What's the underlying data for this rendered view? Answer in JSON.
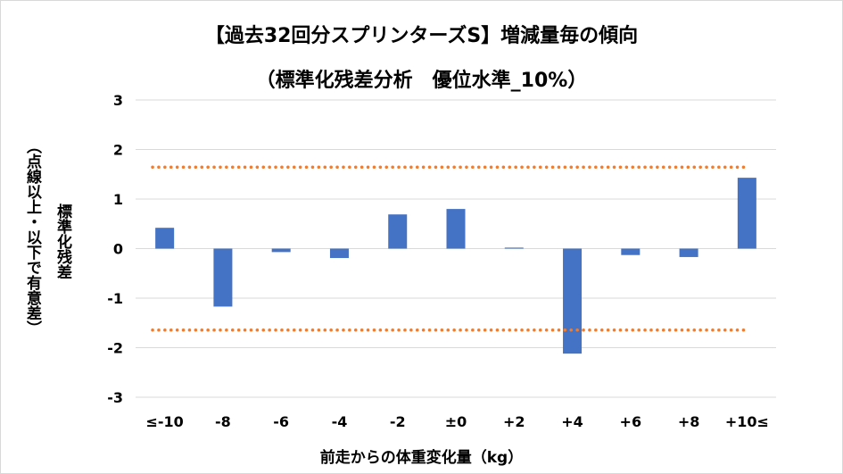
{
  "chart_data": {
    "type": "bar",
    "title": "【過去32回分スプリンターズS】増減量毎の傾向",
    "subtitle": "（標準化残差分析　優位水準_10%）",
    "ylabel": "標準化残差",
    "ylabel_note": "（点線以上・以下で有意差）",
    "xlabel": "前走からの体重変化量（kg）",
    "categories": [
      "≤-10",
      "-8",
      "-6",
      "-4",
      "-2",
      "±0",
      "+2",
      "+4",
      "+6",
      "+8",
      "+10≤"
    ],
    "values": [
      0.42,
      -1.17,
      -0.07,
      -0.19,
      0.69,
      0.8,
      0.02,
      -2.12,
      -0.13,
      -0.17,
      1.43
    ],
    "ylim": [
      -3,
      3
    ],
    "yticks": [
      "3",
      "2",
      "1",
      "0",
      "-1",
      "-2",
      "-3"
    ],
    "grid": true,
    "threshold_lines": [
      1.645,
      -1.645
    ],
    "bar_color": "#4472c4",
    "threshold_color": "#ed7d31",
    "grid_color": "#d9d9d9"
  }
}
